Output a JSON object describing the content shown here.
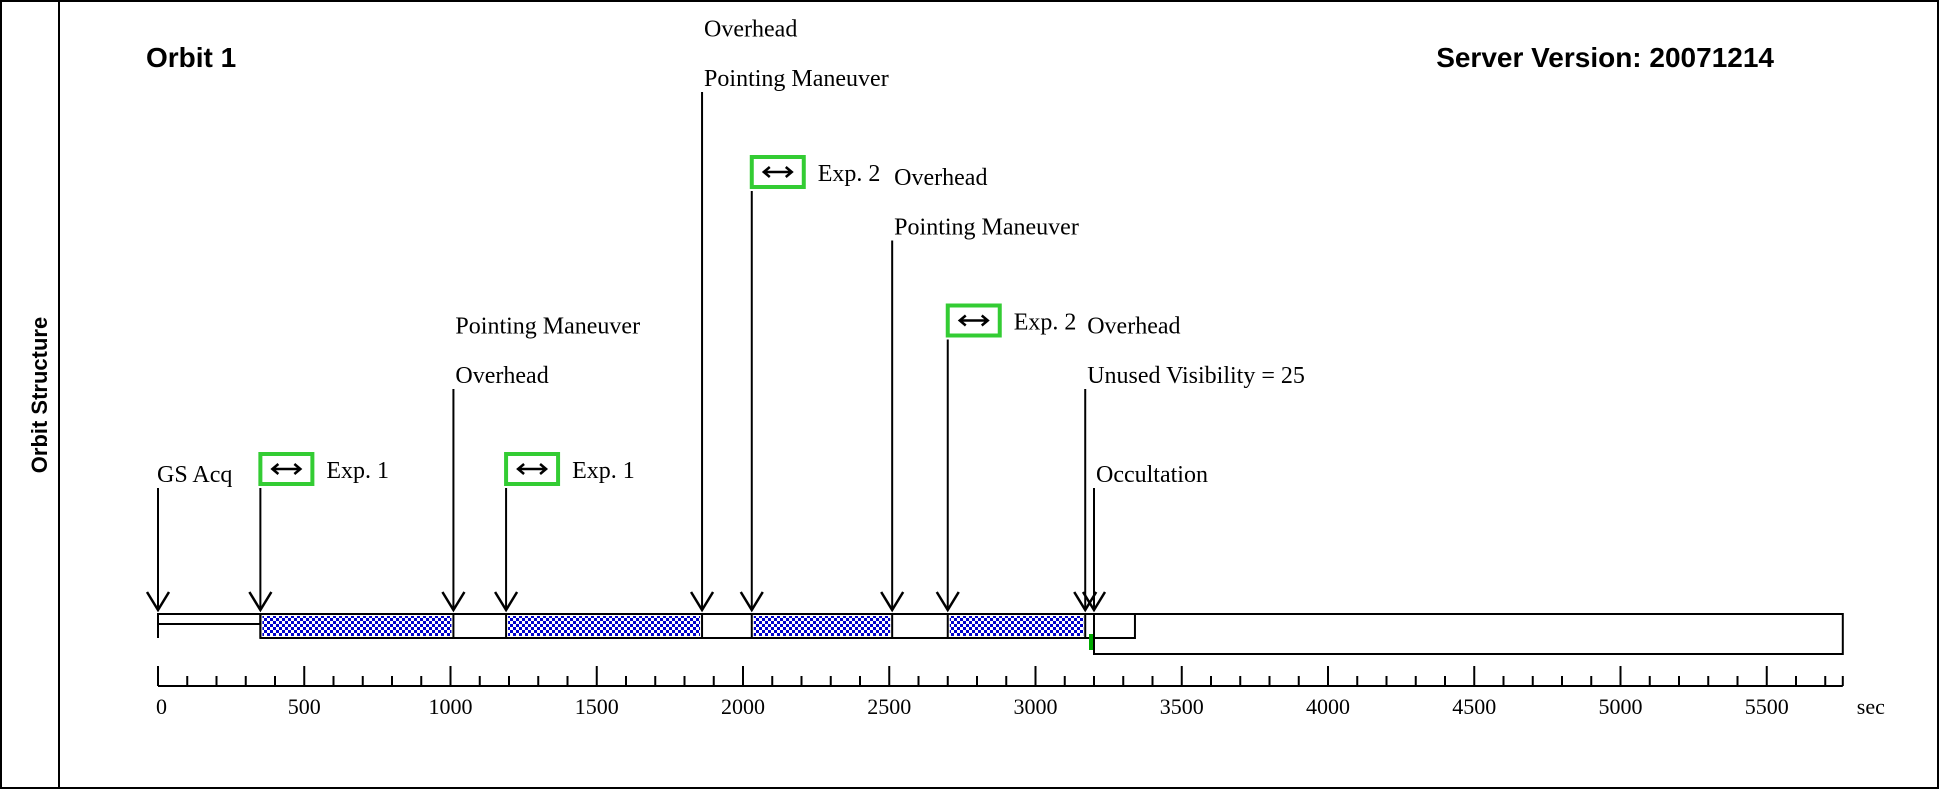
{
  "side_label": "Orbit Structure",
  "orbit_title": "Orbit 1",
  "server_version": "Server Version: 20071214",
  "colors": {
    "exposure_fill": "#0000cc",
    "exposure_box_border": "#33cc33",
    "occultation_marker": "#00aa00",
    "line": "#000000"
  },
  "events": [
    {
      "name": "gs-acq",
      "time": 0,
      "labels": [
        "GS Acq"
      ],
      "exposure": "Exp. 1",
      "top_level": 0
    },
    {
      "name": "exp1-start",
      "time": 350,
      "labels": [],
      "top_level": 0
    },
    {
      "name": "overhead-pointing-1",
      "time": 1010,
      "labels": [
        "Overhead",
        "Pointing Maneuver"
      ],
      "top_level": 2
    },
    {
      "name": "exp1-second-start",
      "time": 1190,
      "labels": [],
      "exposure": "Exp. 1",
      "top_level": 0
    },
    {
      "name": "pointing-overhead-1",
      "time": 1860,
      "labels": [
        "Pointing Maneuver",
        "Overhead"
      ],
      "top_level": 8
    },
    {
      "name": "exp2-start",
      "time": 2030,
      "labels": [],
      "exposure": "Exp. 2",
      "top_level": 6
    },
    {
      "name": "pointing-overhead-2",
      "time": 2510,
      "labels": [
        "Pointing Maneuver",
        "Overhead"
      ],
      "top_level": 5
    },
    {
      "name": "exp2-second-start",
      "time": 2700,
      "labels": [],
      "exposure": "Exp. 2",
      "top_level": 3
    },
    {
      "name": "unused-overhead",
      "time": 3170,
      "labels": [
        "Unused Visibility = 25",
        "Overhead"
      ],
      "top_level": 2
    },
    {
      "name": "occultation",
      "time": 3200,
      "labels": [
        "Occultation"
      ],
      "top_level": 0
    }
  ],
  "exposures": [
    {
      "label": "Exp. 1",
      "start": 350,
      "end": 1010
    },
    {
      "label": "Exp. 1",
      "start": 1190,
      "end": 1860
    },
    {
      "label": "Exp. 2",
      "start": 2030,
      "end": 2510
    },
    {
      "label": "Exp. 2",
      "start": 2700,
      "end": 3170
    }
  ],
  "timeline": {
    "visibility_end": 3340,
    "orbit_end": 5760,
    "gs_acq_end": 350,
    "occultation_start": 3200
  },
  "axis": {
    "min": 0,
    "max": 5760,
    "major_step": 500,
    "minor_step": 100,
    "unit": "sec",
    "tick_labels": [
      "0",
      "500",
      "1000",
      "1500",
      "2000",
      "2500",
      "3000",
      "3500",
      "4000",
      "4500",
      "5000",
      "5500"
    ]
  }
}
